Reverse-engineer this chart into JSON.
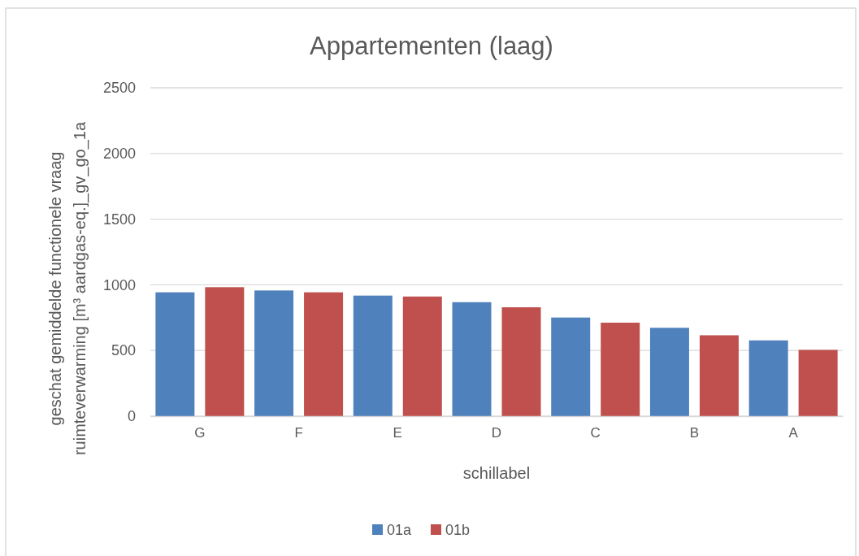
{
  "chart_data": {
    "type": "bar",
    "title": "Appartementen (laag)",
    "xlabel": "schillabel",
    "ylabel": "geschat gemiddelde functionele vraag\nruimteverwarming [m³ aardgas-eq.]_gv_go_1a",
    "categories": [
      "G",
      "F",
      "E",
      "D",
      "C",
      "B",
      "A"
    ],
    "series": [
      {
        "name": "01a",
        "color": "#4f81bd",
        "values": [
          943,
          957,
          918,
          868,
          751,
          673,
          577
        ]
      },
      {
        "name": "01b",
        "color": "#c0504d",
        "values": [
          982,
          943,
          911,
          829,
          712,
          616,
          505
        ]
      }
    ],
    "ylim": [
      0,
      2500
    ],
    "yticks": [
      0,
      500,
      1000,
      1500,
      2000,
      2500
    ],
    "grid": "y",
    "legend": "bottom"
  }
}
